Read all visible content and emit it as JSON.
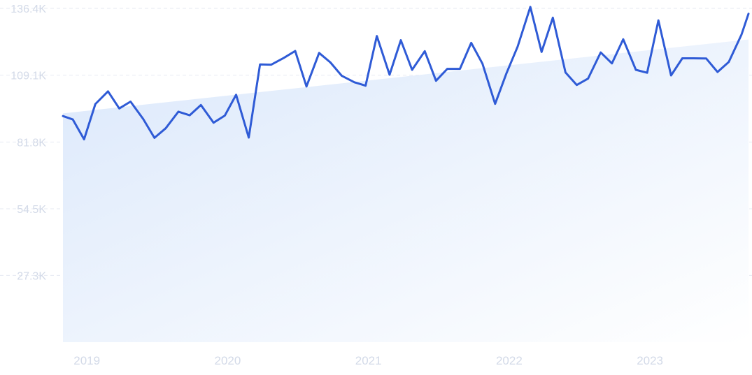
{
  "chart_data": {
    "type": "line",
    "title": "",
    "xlabel": "",
    "ylabel": "",
    "y_ticks": [
      "136.4K",
      "109.1K",
      "81.8K",
      "54.5K",
      "27.3K"
    ],
    "y_tick_values": [
      136400,
      109100,
      81800,
      54500,
      27300
    ],
    "x_ticks": [
      "2019",
      "2020",
      "2021",
      "2022",
      "2023"
    ],
    "x_tick_values": [
      2019.0,
      2020.0,
      2021.0,
      2022.0,
      2023.0
    ],
    "xlim": [
      2018.85,
      2023.72
    ],
    "ylim": [
      0,
      136400
    ],
    "grid": true,
    "legend": "none",
    "colors": {
      "line": "#2f5bd6",
      "area_top": "#dbe8fb",
      "area_bottom": "#ffffff",
      "grid": "#e6eaf2",
      "labels": "#d3dae8"
    },
    "series": [
      {
        "x": [
          2018.85,
          2018.92,
          2019.0,
          2019.08,
          2019.17,
          2019.25,
          2019.33,
          2019.42,
          2019.5,
          2019.58,
          2019.67,
          2019.75,
          2019.83,
          2019.92,
          2020.0,
          2020.08,
          2020.17,
          2020.25,
          2020.33,
          2020.42,
          2020.5,
          2020.58,
          2020.67,
          2020.75,
          2020.83,
          2020.92,
          2021.0,
          2021.08,
          2021.17,
          2021.25,
          2021.33,
          2021.42,
          2021.5,
          2021.58,
          2021.67,
          2021.75,
          2021.83,
          2021.92,
          2022.0,
          2022.08,
          2022.17,
          2022.25,
          2022.33,
          2022.42,
          2022.5,
          2022.58,
          2022.67,
          2022.75,
          2022.83,
          2022.92,
          2023.0,
          2023.08,
          2023.17,
          2023.25,
          2023.33,
          2023.42,
          2023.5,
          2023.58,
          2023.67,
          2023.72
        ],
        "values": [
          92400,
          91000,
          82900,
          97300,
          102500,
          95500,
          98300,
          91200,
          83500,
          87400,
          94200,
          92700,
          96900,
          89700,
          92600,
          101100,
          83600,
          113500,
          113400,
          116200,
          119000,
          104500,
          118200,
          114300,
          108900,
          106200,
          104800,
          125100,
          109300,
          123400,
          111300,
          118900,
          106800,
          111700,
          111700,
          122300,
          113800,
          97400,
          109800,
          120800,
          137000,
          118600,
          132600,
          110200,
          105100,
          107700,
          118400,
          113900,
          123800,
          111300,
          110100,
          131500,
          109000,
          116000,
          116000,
          115900,
          110400,
          114500,
          125600,
          134200
        ]
      }
    ],
    "trend": {
      "start_value": 93500,
      "end_value": 123700
    }
  }
}
